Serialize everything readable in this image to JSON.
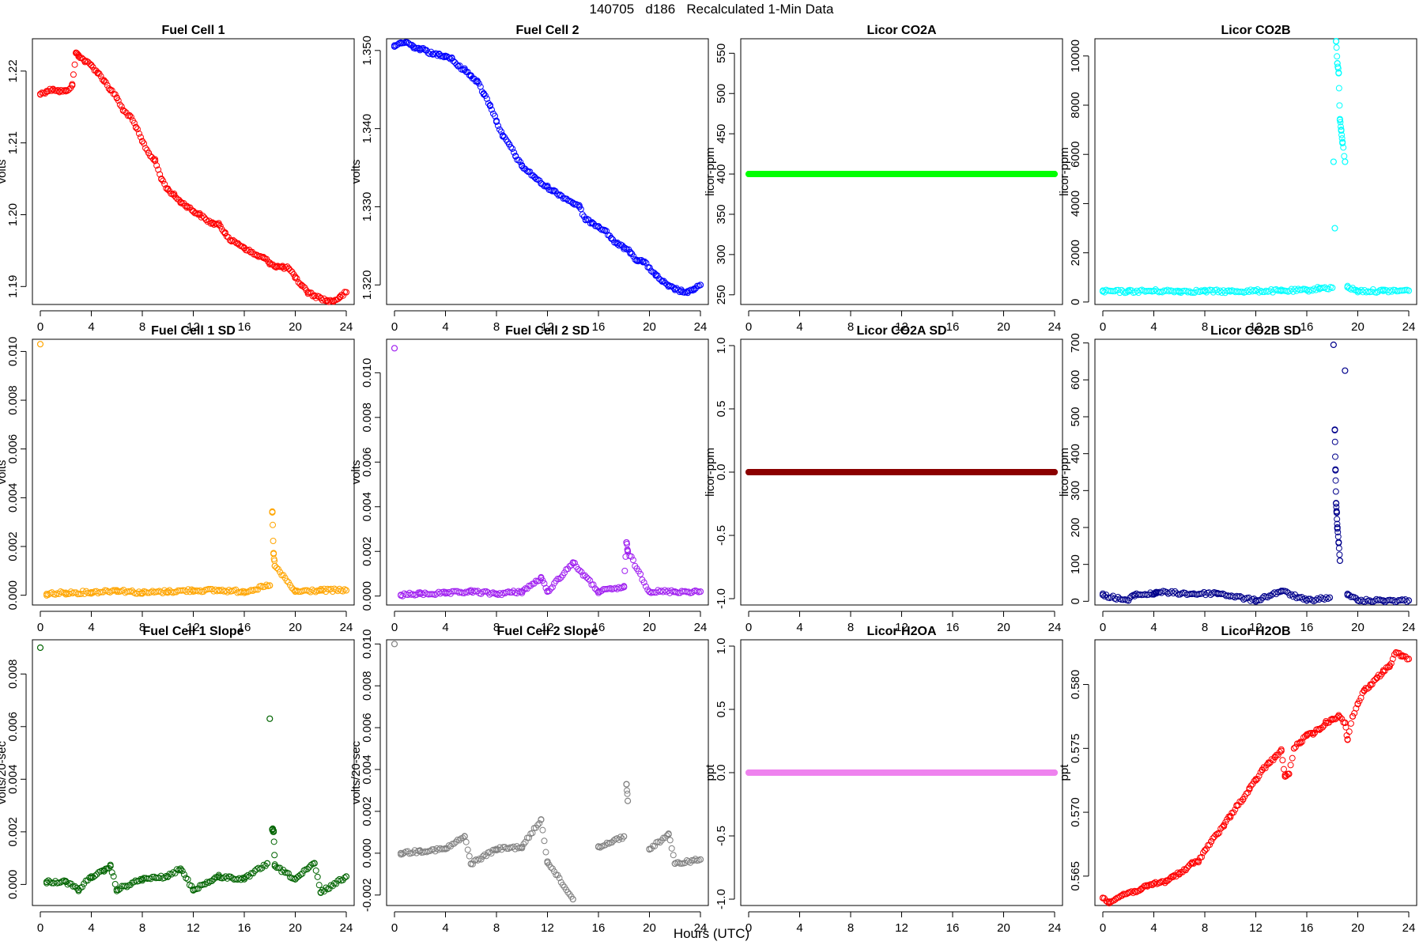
{
  "figure": {
    "title": "140705   d186   Recalculated 1-Min Data",
    "xlabel": "Hours (UTC)",
    "x_ticks": [
      "0",
      "4",
      "8",
      "12",
      "16",
      "20",
      "24"
    ]
  },
  "chart_data": [
    {
      "type": "scatter",
      "title": "Fuel Cell 1",
      "ylabel": "volts",
      "color": "#ff0000",
      "ylim": [
        1.1875,
        1.2245
      ],
      "yticks": [
        1.19,
        1.2,
        1.21,
        1.22
      ],
      "yticklabels": [
        "1.19",
        "1.20",
        "1.21",
        "1.22"
      ],
      "x": [
        0,
        0.5,
        1,
        1.5,
        2,
        2.5,
        2.8,
        3,
        3.5,
        4,
        4.5,
        5,
        5.5,
        6,
        6.5,
        7,
        7.5,
        8,
        8.5,
        9,
        9.5,
        10,
        10.5,
        11,
        11.5,
        12,
        12.5,
        13,
        13.5,
        14,
        14.5,
        15,
        15.5,
        16,
        16.5,
        17,
        17.5,
        18,
        18.5,
        19,
        19.5,
        20,
        20.5,
        21,
        21.5,
        22,
        22.5,
        23,
        23.5,
        24
      ],
      "y": [
        1.2168,
        1.2172,
        1.2175,
        1.2172,
        1.2172,
        1.218,
        1.2225,
        1.2222,
        1.2214,
        1.2208,
        1.2198,
        1.2187,
        1.2174,
        1.2163,
        1.2145,
        1.2138,
        1.2122,
        1.2102,
        1.2086,
        1.2075,
        1.205,
        1.2035,
        1.2027,
        1.2018,
        1.2012,
        1.2005,
        1.2,
        1.1993,
        1.1988,
        1.1986,
        1.1975,
        1.1963,
        1.196,
        1.1954,
        1.1948,
        1.1943,
        1.194,
        1.1933,
        1.1928,
        1.1927,
        1.1925,
        1.1912,
        1.1902,
        1.1892,
        1.1887,
        1.1884,
        1.188,
        1.188,
        1.1885,
        1.1892
      ]
    },
    {
      "type": "scatter",
      "title": "Fuel Cell 2",
      "ylabel": "volts",
      "color": "#0000ff",
      "ylim": [
        1.3175,
        1.3515
      ],
      "yticks": [
        1.32,
        1.33,
        1.34,
        1.35
      ],
      "yticklabels": [
        "1.320",
        "1.330",
        "1.340",
        "1.350"
      ],
      "x": [
        0,
        0.5,
        1,
        1.5,
        2,
        2.5,
        3,
        3.5,
        4,
        4.5,
        5,
        5.5,
        6,
        6.5,
        7,
        7.5,
        8,
        8.5,
        9,
        9.5,
        10,
        10.5,
        11,
        11.5,
        12,
        12.5,
        13,
        13.5,
        14,
        14.5,
        15,
        15.5,
        16,
        16.5,
        17,
        17.5,
        18,
        18.5,
        19,
        19.5,
        20,
        20.5,
        21,
        21.5,
        22,
        22.5,
        23,
        23.5,
        24
      ],
      "y": [
        1.3505,
        1.351,
        1.351,
        1.3505,
        1.3502,
        1.35,
        1.3495,
        1.3495,
        1.3493,
        1.349,
        1.348,
        1.3475,
        1.3468,
        1.346,
        1.3445,
        1.343,
        1.341,
        1.339,
        1.338,
        1.3365,
        1.3352,
        1.3345,
        1.3338,
        1.333,
        1.3325,
        1.332,
        1.3315,
        1.331,
        1.3305,
        1.33,
        1.3283,
        1.328,
        1.3275,
        1.327,
        1.326,
        1.3252,
        1.3248,
        1.3242,
        1.3232,
        1.323,
        1.3222,
        1.3212,
        1.3205,
        1.3198,
        1.3195,
        1.3192,
        1.319,
        1.3195,
        1.32
      ]
    },
    {
      "type": "scatter",
      "title": "Licor CO2A",
      "ylabel": "licor-ppm",
      "color": "#00ff00",
      "ylim": [
        238,
        568
      ],
      "yticks": [
        250,
        300,
        350,
        400,
        450,
        500,
        550
      ],
      "yticklabels": [
        "250",
        "300",
        "350",
        "400",
        "450",
        "500",
        "550"
      ],
      "x": [
        0,
        24
      ],
      "y": [
        400,
        400
      ],
      "style": "band"
    },
    {
      "type": "scatter",
      "title": "Licor CO2B",
      "ylabel": "licor-ppm",
      "color": "#00ffff",
      "ylim": [
        -100,
        10700
      ],
      "yticks": [
        0,
        2000,
        4000,
        6000,
        8000,
        10000
      ],
      "yticklabels": [
        "0",
        "2000",
        "4000",
        "6000",
        "8000",
        "10000"
      ],
      "x": [
        0,
        2,
        4,
        6,
        8,
        10,
        12,
        14,
        16,
        17,
        18,
        18.1,
        18.2,
        18.3,
        18.4,
        18.5,
        18.6,
        18.7,
        18.8,
        19,
        19.2,
        20,
        22,
        24
      ],
      "y": [
        430,
        430,
        450,
        440,
        440,
        430,
        450,
        450,
        480,
        560,
        580,
        5700,
        3000,
        10600,
        9700,
        9300,
        7400,
        7000,
        6500,
        5700,
        600,
        450,
        450,
        460
      ]
    },
    {
      "type": "scatter",
      "title": "Fuel Cell 1 SD",
      "ylabel": "volts",
      "color": "#ffa500",
      "ylim": [
        -0.0004,
        0.0105
      ],
      "yticks": [
        0,
        0.002,
        0.004,
        0.006,
        0.008,
        0.01
      ],
      "yticklabels": [
        "0.000",
        "0.002",
        "0.004",
        "0.006",
        "0.008",
        "0.010"
      ],
      "x": [
        0,
        0.5,
        2,
        4,
        6,
        8,
        10,
        12,
        14,
        16,
        18,
        18.2,
        18.3,
        18.4,
        20,
        22,
        24
      ],
      "y": [
        0.0103,
        5e-05,
        0.0001,
        0.00012,
        0.0002,
        0.0001,
        0.00015,
        0.0002,
        0.0002,
        0.00015,
        0.0004,
        0.0034,
        0.0017,
        0.0012,
        0.00015,
        0.0002,
        0.0002
      ]
    },
    {
      "type": "scatter",
      "title": "Fuel Cell 2 SD",
      "ylabel": "volts",
      "color": "#a020f0",
      "ylim": [
        -0.0004,
        0.0115
      ],
      "yticks": [
        0,
        0.002,
        0.004,
        0.006,
        0.008,
        0.01
      ],
      "yticklabels": [
        "0.000",
        "0.002",
        "0.004",
        "0.006",
        "0.008",
        "0.010"
      ],
      "x": [
        0,
        0.5,
        2,
        4,
        6,
        8,
        10,
        11.5,
        12,
        14,
        16,
        18,
        18.2,
        18.3,
        20,
        22,
        24
      ],
      "y": [
        0.0111,
        5e-05,
        0.0001,
        0.00012,
        0.0002,
        0.0001,
        0.0002,
        0.0008,
        0.0002,
        0.0015,
        0.0002,
        0.0004,
        0.0024,
        0.002,
        0.0002,
        0.0002,
        0.0002
      ]
    },
    {
      "type": "scatter",
      "title": "Licor CO2A SD",
      "ylabel": "licor-ppm",
      "color": "#8b0000",
      "ylim": [
        -1.05,
        1.05
      ],
      "yticks": [
        -1,
        -0.5,
        0,
        0.5,
        1
      ],
      "yticklabels": [
        "-1.0",
        "-0.5",
        "0.0",
        "0.5",
        "1.0"
      ],
      "x": [
        0,
        24
      ],
      "y": [
        0,
        0
      ],
      "style": "band"
    },
    {
      "type": "scatter",
      "title": "Licor CO2B SD",
      "ylabel": "licor-ppm",
      "color": "#00008b",
      "ylim": [
        -10,
        710
      ],
      "yticks": [
        0,
        100,
        200,
        300,
        400,
        500,
        600,
        700
      ],
      "yticklabels": [
        "0",
        "100",
        "200",
        "300",
        "400",
        "500",
        "600",
        "700"
      ],
      "x": [
        0,
        2,
        2.5,
        4,
        4.2,
        7,
        9,
        12,
        14,
        16,
        17.8,
        18.1,
        18.2,
        18.25,
        18.3,
        18.35,
        18.4,
        18.5,
        18.6,
        19,
        19.2,
        20,
        22,
        24
      ],
      "y": [
        17,
        2,
        18,
        20,
        25,
        20,
        22,
        2,
        28,
        2,
        10,
        695,
        465,
        355,
        265,
        240,
        200,
        160,
        110,
        625,
        20,
        2,
        2,
        2
      ]
    },
    {
      "type": "scatter",
      "title": "Fuel Cell 1 Slope",
      "ylabel": "volts/20-sec",
      "color": "#006400",
      "ylim": [
        -0.0008,
        0.0093
      ],
      "yticks": [
        0,
        0.002,
        0.004,
        0.006,
        0.008
      ],
      "yticklabels": [
        "0.000",
        "0.002",
        "0.004",
        "0.006",
        "0.008"
      ],
      "x": [
        0,
        0.5,
        2,
        3,
        4,
        5,
        5.5,
        6,
        8,
        10,
        11,
        12,
        14,
        16,
        17.8,
        18,
        18.2,
        18.3,
        18.4,
        20,
        21.5,
        22,
        24
      ],
      "y": [
        0.009,
        0.0001,
        0.0001,
        -0.0002,
        0.0003,
        0.0005,
        0.0007,
        -0.0002,
        0.0002,
        0.0003,
        0.0006,
        -0.0002,
        0.0003,
        0.0002,
        0.0008,
        0.0063,
        0.0021,
        0.002,
        0.0007,
        0.0002,
        0.0008,
        -0.0003,
        0.0003
      ]
    },
    {
      "type": "scatter",
      "title": "Fuel Cell 2 Slope",
      "ylabel": "volts/20-sec",
      "color": "#808080",
      "ylim": [
        -0.0025,
        0.0102
      ],
      "yticks": [
        -0.002,
        0,
        0.002,
        0.004,
        0.006,
        0.008,
        0.01
      ],
      "yticklabels": [
        "-0.002",
        "0.000",
        "0.002",
        "0.004",
        "0.006",
        "0.008",
        "0.010"
      ],
      "x": [
        0,
        0.5,
        2,
        4,
        5.5,
        6,
        8,
        10,
        11.5,
        12,
        14,
        16,
        18,
        18.2,
        18.3,
        20,
        21.5,
        22,
        24
      ],
      "y": [
        0.01,
        0,
        0.0001,
        0.0002,
        0.0008,
        -0.0005,
        0.0002,
        0.0003,
        0.0016,
        -0.0004,
        -0.0022,
        0.0003,
        0.0008,
        0.0033,
        0.0025,
        0.0002,
        0.0009,
        -0.0005,
        -0.0003
      ]
    },
    {
      "type": "scatter",
      "title": "Licor H2OA",
      "ylabel": "ppt",
      "color": "#ee82ee",
      "ylim": [
        -1.05,
        1.05
      ],
      "yticks": [
        -1,
        -0.5,
        0,
        0.5,
        1
      ],
      "yticklabels": [
        "-1.0",
        "-0.5",
        "0.0",
        "0.5",
        "1.0"
      ],
      "x": [
        0,
        24
      ],
      "y": [
        0,
        0
      ],
      "style": "band"
    },
    {
      "type": "scatter",
      "title": "Licor H2OB",
      "ylabel": "ppt",
      "color": "#ff0000",
      "ylim": [
        0.5627,
        0.5835
      ],
      "yticks": [
        0.565,
        0.57,
        0.575,
        0.58
      ],
      "yticklabels": [
        "0.565",
        "0.570",
        "0.575",
        "0.580"
      ],
      "x": [
        0,
        0.5,
        1,
        1.5,
        2,
        2.5,
        3,
        3.5,
        4,
        4.5,
        5,
        5.5,
        6,
        6.5,
        7,
        7.5,
        8,
        8.5,
        9,
        9.5,
        10,
        10.5,
        11,
        11.5,
        12,
        12.5,
        13,
        13.5,
        14,
        14.3,
        14.6,
        15,
        15.5,
        16,
        16.5,
        17,
        17.5,
        18,
        18.5,
        19,
        19.2,
        19.6,
        20,
        20.5,
        21,
        21.5,
        22,
        22.5,
        23,
        23.5,
        24
      ],
      "y": [
        0.5633,
        0.563,
        0.5632,
        0.5635,
        0.5637,
        0.5638,
        0.564,
        0.5642,
        0.5644,
        0.5645,
        0.5646,
        0.565,
        0.5652,
        0.5655,
        0.566,
        0.5662,
        0.567,
        0.5677,
        0.5683,
        0.569,
        0.5697,
        0.5705,
        0.571,
        0.5718,
        0.5725,
        0.5733,
        0.5738,
        0.5743,
        0.5748,
        0.5728,
        0.573,
        0.575,
        0.5755,
        0.576,
        0.5762,
        0.5765,
        0.577,
        0.5773,
        0.5775,
        0.577,
        0.5757,
        0.5775,
        0.5785,
        0.5795,
        0.58,
        0.5805,
        0.581,
        0.5815,
        0.5825,
        0.5822,
        0.582
      ]
    }
  ]
}
